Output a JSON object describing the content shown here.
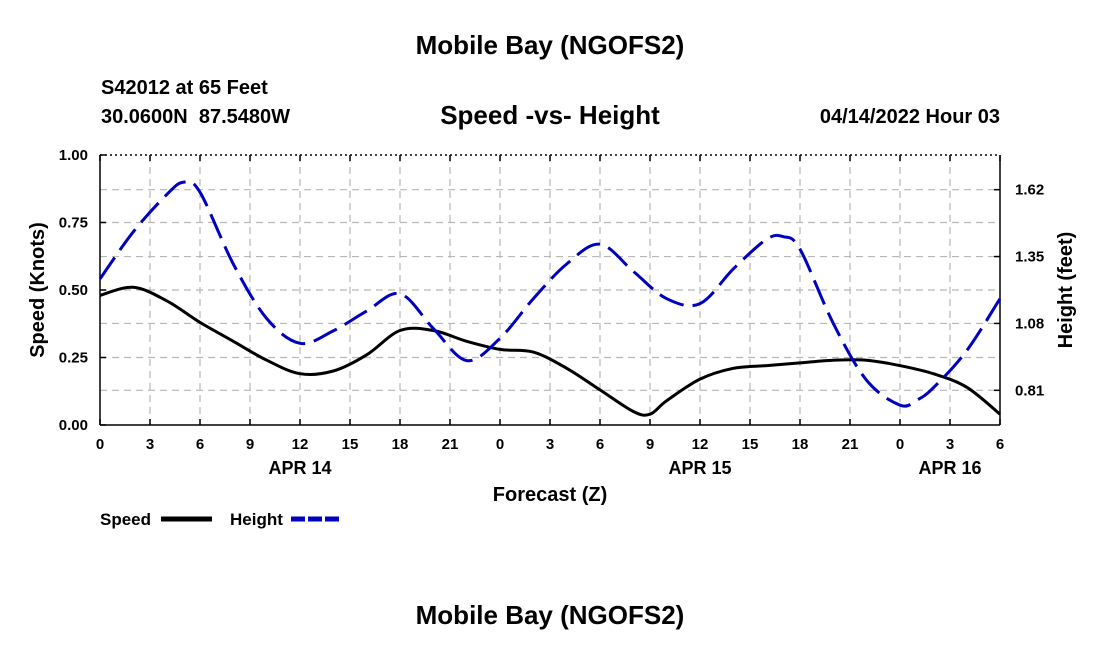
{
  "chart_data": {
    "type": "line",
    "title": "Mobile Bay (NGOFS2)",
    "subtitle": "Speed -vs- Height",
    "station": "S42012 at 65 Feet",
    "coordinates": "30.0600N  87.5480W",
    "datetime": "04/14/2022 Hour 03",
    "bottom_title": "Mobile Bay (NGOFS2)",
    "xlabel": "Forecast (Z)",
    "ylabel_left": "Speed (Knots)",
    "ylabel_right": "Height (feet)",
    "x_range": [
      0,
      54
    ],
    "x_ticks": [
      0,
      3,
      6,
      9,
      12,
      15,
      18,
      21,
      24,
      27,
      30,
      33,
      36,
      39,
      42,
      45,
      48,
      51,
      54
    ],
    "x_tick_labels": [
      "0",
      "3",
      "6",
      "9",
      "12",
      "15",
      "18",
      "21",
      "0",
      "3",
      "6",
      "9",
      "12",
      "15",
      "18",
      "21",
      "0",
      "3",
      "6"
    ],
    "date_labels": [
      {
        "hour": 12,
        "label": "APR 14"
      },
      {
        "hour": 36,
        "label": "APR 15"
      },
      {
        "hour": 51,
        "label": "APR 16"
      }
    ],
    "y_left_range": [
      0,
      1
    ],
    "y_left_ticks": [
      0,
      0.25,
      0.5,
      0.75,
      1.0
    ],
    "y_left_tick_labels": [
      "0.00",
      "0.25",
      "0.50",
      "0.75",
      "1.00"
    ],
    "y_right_range": [
      0.67,
      1.76
    ],
    "y_right_ticks": [
      0.81,
      1.08,
      1.35,
      1.62
    ],
    "y_right_tick_labels": [
      "0.81",
      "1.08",
      "1.35",
      "1.62"
    ],
    "series": [
      {
        "name": "Speed",
        "axis": "left",
        "color": "#000000",
        "style": "solid",
        "x": [
          0,
          2,
          4,
          6,
          8,
          10,
          12,
          14,
          16,
          18,
          20,
          22,
          24,
          26,
          28,
          30,
          32,
          33,
          34,
          36,
          38,
          40,
          42,
          44,
          46,
          48,
          50,
          52,
          54
        ],
        "values": [
          0.48,
          0.51,
          0.46,
          0.38,
          0.31,
          0.24,
          0.19,
          0.2,
          0.26,
          0.35,
          0.35,
          0.31,
          0.28,
          0.27,
          0.21,
          0.13,
          0.05,
          0.04,
          0.09,
          0.17,
          0.21,
          0.22,
          0.23,
          0.24,
          0.24,
          0.22,
          0.19,
          0.14,
          0.04
        ]
      },
      {
        "name": "Height",
        "axis": "right",
        "color": "#0000c0",
        "style": "dashed",
        "x": [
          0,
          2,
          4,
          5,
          6,
          8,
          10,
          12,
          14,
          16,
          18,
          20,
          22,
          24,
          26,
          28,
          30,
          32,
          34,
          36,
          38,
          40,
          41,
          42,
          44,
          46,
          48,
          49,
          50,
          52,
          54
        ],
        "values": [
          1.26,
          1.45,
          1.6,
          1.65,
          1.61,
          1.32,
          1.1,
          1.0,
          1.05,
          1.13,
          1.2,
          1.06,
          0.93,
          1.02,
          1.18,
          1.32,
          1.4,
          1.29,
          1.18,
          1.16,
          1.3,
          1.42,
          1.43,
          1.38,
          1.08,
          0.85,
          0.75,
          0.77,
          0.82,
          0.97,
          1.18
        ]
      }
    ],
    "legend": [
      {
        "label": "Speed",
        "color": "#000000",
        "style": "solid"
      },
      {
        "label": "Height",
        "color": "#0000c0",
        "style": "dashed"
      }
    ]
  }
}
